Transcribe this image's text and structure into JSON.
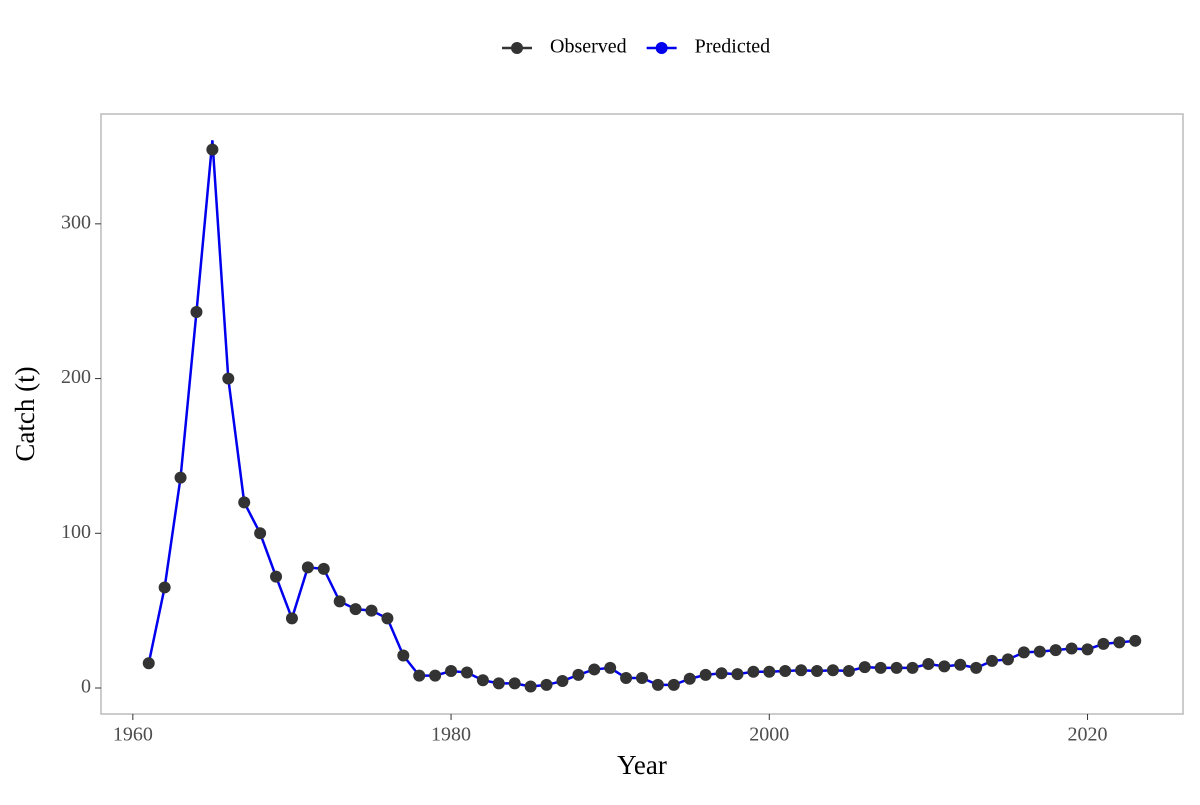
{
  "chart_data": {
    "type": "line",
    "x": [
      1961,
      1962,
      1963,
      1964,
      1965,
      1966,
      1967,
      1968,
      1969,
      1970,
      1971,
      1972,
      1973,
      1974,
      1975,
      1976,
      1977,
      1978,
      1979,
      1980,
      1981,
      1982,
      1983,
      1984,
      1985,
      1986,
      1987,
      1988,
      1989,
      1990,
      1991,
      1992,
      1993,
      1994,
      1995,
      1996,
      1997,
      1998,
      1999,
      2000,
      2001,
      2002,
      2003,
      2004,
      2005,
      2006,
      2007,
      2008,
      2009,
      2010,
      2011,
      2012,
      2013,
      2014,
      2015,
      2016,
      2017,
      2018,
      2019,
      2020,
      2021,
      2022,
      2023
    ],
    "series": [
      {
        "name": "Observed",
        "color": "#333333",
        "values": [
          16,
          65,
          136,
          243,
          348,
          200,
          120,
          100,
          72,
          45,
          78,
          77,
          56,
          51,
          50,
          45,
          21,
          8,
          8,
          11,
          10,
          5,
          3,
          3,
          1,
          2,
          4.5,
          8.5,
          12,
          13,
          6.5,
          6.5,
          2,
          2,
          6,
          8.5,
          9.5,
          9,
          10.5,
          10.5,
          11,
          11.5,
          11,
          11.5,
          11,
          13.5,
          13,
          13,
          13,
          15.5,
          14,
          15,
          13,
          17.5,
          18.5,
          23,
          23.5,
          24.5,
          25.5,
          25,
          28.5,
          29.5,
          30.5
        ]
      },
      {
        "name": "Predicted",
        "color": "#0000ee",
        "values": [
          16,
          65,
          136,
          243,
          354,
          200,
          120,
          100,
          72,
          45,
          78,
          77,
          56,
          51,
          50,
          45,
          21,
          8,
          8,
          11,
          10,
          5,
          3,
          3,
          1,
          2,
          4.5,
          8.5,
          12,
          13,
          6.5,
          6.5,
          2,
          2,
          6,
          8.5,
          9.5,
          9,
          10.5,
          10.5,
          11,
          11.5,
          11,
          11.5,
          11,
          13.5,
          13,
          13,
          13,
          15.5,
          14,
          15,
          13,
          17.5,
          18.5,
          23,
          23.5,
          24.5,
          25.5,
          25,
          28.5,
          29.5,
          30.5
        ]
      }
    ],
    "x_label": "Year",
    "y_label": "Catch (t)",
    "xlim": [
      1958,
      2026
    ],
    "xticks": [
      1960,
      1980,
      2000,
      2020
    ],
    "ylim": [
      -16.8,
      371
    ],
    "yticks": [
      0,
      100,
      200,
      300
    ],
    "grid": false,
    "legend_position": "top"
  }
}
